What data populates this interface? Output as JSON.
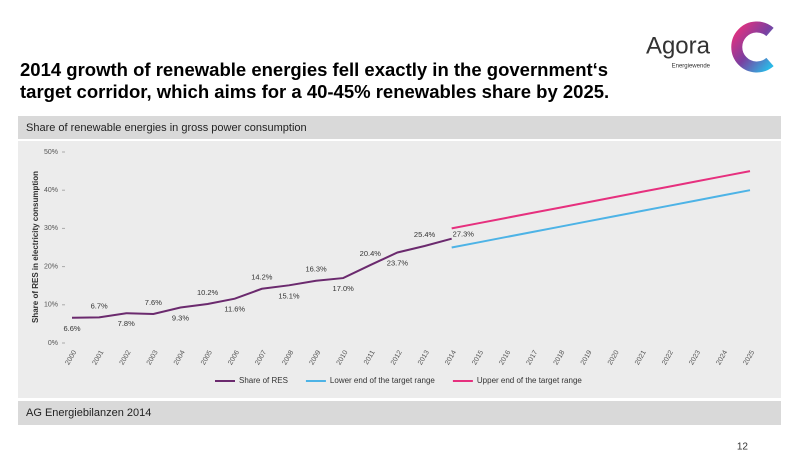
{
  "slide": {
    "title": [
      "2014 growth of renewable energies fell exactly in the government‘s",
      "target corridor, which aims for a 40-45% renewables share by 2025."
    ],
    "logo": "Agora",
    "logo_sub": "Energiewende",
    "source": "AG Energiebilanzen 2014",
    "page": 12
  },
  "chart_data": {
    "type": "line",
    "title": "Share of renewable energies in gross power consumption",
    "y_label": "Share of RES in electricity consumption",
    "categories": [
      "2000",
      "2001",
      "2002",
      "2003",
      "2004",
      "2005",
      "2006",
      "2007",
      "2008",
      "2009",
      "2010",
      "2011",
      "2012",
      "2013",
      "2014",
      "2015",
      "2016",
      "2017",
      "2018",
      "2019",
      "2020",
      "2021",
      "2022",
      "2023",
      "2024",
      "2025"
    ],
    "series": [
      {
        "name": "Share of RES",
        "color": "#6b2a6e",
        "values": [
          6.6,
          6.7,
          7.8,
          7.6,
          9.3,
          10.2,
          11.6,
          14.2,
          15.1,
          16.3,
          17.0,
          20.4,
          23.7,
          25.4,
          27.3,
          null,
          null,
          null,
          null,
          null,
          null,
          null,
          null,
          null,
          null,
          null
        ],
        "value_labels": [
          "6.6%",
          "6.7%",
          "7.8%",
          "7.6%",
          "9.3%",
          "10.2%",
          "11.6%",
          "14.2%",
          "15.1%",
          "16.3%",
          "17.0%",
          "20.4%",
          "23.7%",
          "25.4%",
          "27.3%",
          null,
          null,
          null,
          null,
          null,
          null,
          null,
          null,
          null,
          null,
          null
        ]
      },
      {
        "name": "Lower end of the target range",
        "color": "#4db3e6",
        "values": [
          null,
          null,
          null,
          null,
          null,
          null,
          null,
          null,
          null,
          null,
          null,
          null,
          null,
          null,
          25,
          26.36,
          27.73,
          29.09,
          30.45,
          31.82,
          33.18,
          34.55,
          35.91,
          37.27,
          38.64,
          40
        ]
      },
      {
        "name": "Upper end of the target range",
        "color": "#e6307e",
        "values": [
          null,
          null,
          null,
          null,
          null,
          null,
          null,
          null,
          null,
          null,
          null,
          null,
          null,
          null,
          30,
          31.36,
          32.73,
          34.09,
          35.45,
          36.82,
          38.18,
          39.55,
          40.91,
          42.27,
          43.64,
          45
        ]
      }
    ],
    "ylim": [
      0,
      50
    ],
    "yticks": [
      {
        "value": 0,
        "label": "0%"
      },
      {
        "value": 10,
        "label": "10%"
      },
      {
        "value": 20,
        "label": "20%"
      },
      {
        "value": 30,
        "label": "30%"
      },
      {
        "value": 40,
        "label": "40%"
      },
      {
        "value": 50,
        "label": "50%"
      }
    ],
    "grid": false,
    "legend": "bottom"
  }
}
